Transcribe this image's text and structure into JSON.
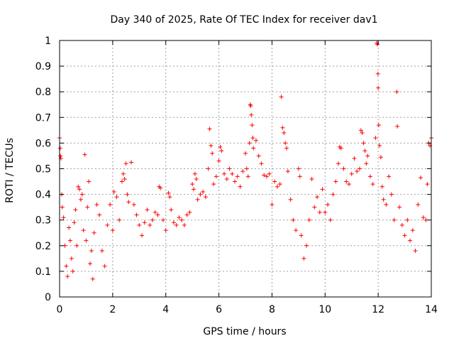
{
  "chart_data": {
    "type": "scatter",
    "title": "Day 340 of 2025, Rate Of TEC Index for receiver dav1",
    "xlabel": "GPS time / hours",
    "ylabel": "ROTI / TECUs",
    "xlim": [
      0,
      14
    ],
    "ylim": [
      0,
      1
    ],
    "x_ticks": [
      0,
      2,
      4,
      6,
      8,
      10,
      12,
      14
    ],
    "x_tick_labels": [
      "0",
      "2",
      "4",
      "6",
      "8",
      "10",
      "12",
      "14"
    ],
    "y_ticks": [
      0,
      0.1,
      0.2,
      0.3,
      0.4,
      0.5,
      0.6,
      0.7,
      0.8,
      0.9,
      1
    ],
    "y_tick_labels": [
      "0",
      "0.1",
      "0.2",
      "0.3",
      "0.4",
      "0.5",
      "0.6",
      "0.7",
      "0.8",
      "0.9",
      "1"
    ],
    "grid": true,
    "marker": "+",
    "color": "#ff0000",
    "points": [
      [
        0.0,
        0.62
      ],
      [
        0.02,
        0.58
      ],
      [
        0.03,
        0.55
      ],
      [
        0.05,
        0.54
      ],
      [
        0.08,
        0.4
      ],
      [
        0.1,
        0.35
      ],
      [
        0.15,
        0.31
      ],
      [
        0.2,
        0.2
      ],
      [
        0.25,
        0.12
      ],
      [
        0.3,
        0.08
      ],
      [
        0.35,
        0.27
      ],
      [
        0.4,
        0.22
      ],
      [
        0.45,
        0.15
      ],
      [
        0.5,
        0.1
      ],
      [
        0.55,
        0.29
      ],
      [
        0.6,
        0.34
      ],
      [
        0.65,
        0.2
      ],
      [
        0.7,
        0.43
      ],
      [
        0.75,
        0.42
      ],
      [
        0.8,
        0.38
      ],
      [
        0.85,
        0.4
      ],
      [
        0.9,
        0.26
      ],
      [
        0.95,
        0.555
      ],
      [
        1.0,
        0.22
      ],
      [
        1.05,
        0.35
      ],
      [
        1.1,
        0.45
      ],
      [
        1.15,
        0.13
      ],
      [
        1.2,
        0.18
      ],
      [
        1.25,
        0.07
      ],
      [
        1.3,
        0.25
      ],
      [
        1.4,
        0.36
      ],
      [
        1.5,
        0.32
      ],
      [
        1.6,
        0.18
      ],
      [
        1.7,
        0.12
      ],
      [
        1.8,
        0.28
      ],
      [
        1.9,
        0.36
      ],
      [
        2.0,
        0.26
      ],
      [
        2.05,
        0.41
      ],
      [
        2.15,
        0.39
      ],
      [
        2.25,
        0.3
      ],
      [
        2.35,
        0.45
      ],
      [
        2.4,
        0.48
      ],
      [
        2.45,
        0.46
      ],
      [
        2.5,
        0.52
      ],
      [
        2.55,
        0.4
      ],
      [
        2.6,
        0.37
      ],
      [
        2.7,
        0.525
      ],
      [
        2.8,
        0.36
      ],
      [
        2.9,
        0.32
      ],
      [
        3.0,
        0.28
      ],
      [
        3.1,
        0.24
      ],
      [
        3.2,
        0.29
      ],
      [
        3.3,
        0.34
      ],
      [
        3.4,
        0.28
      ],
      [
        3.5,
        0.3
      ],
      [
        3.6,
        0.33
      ],
      [
        3.7,
        0.32
      ],
      [
        3.75,
        0.43
      ],
      [
        3.8,
        0.425
      ],
      [
        3.9,
        0.3
      ],
      [
        4.0,
        0.26
      ],
      [
        4.1,
        0.405
      ],
      [
        4.15,
        0.39
      ],
      [
        4.2,
        0.34
      ],
      [
        4.3,
        0.29
      ],
      [
        4.4,
        0.28
      ],
      [
        4.5,
        0.31
      ],
      [
        4.6,
        0.3
      ],
      [
        4.7,
        0.28
      ],
      [
        4.8,
        0.32
      ],
      [
        4.9,
        0.33
      ],
      [
        5.0,
        0.44
      ],
      [
        5.05,
        0.42
      ],
      [
        5.1,
        0.48
      ],
      [
        5.15,
        0.46
      ],
      [
        5.2,
        0.38
      ],
      [
        5.3,
        0.4
      ],
      [
        5.4,
        0.41
      ],
      [
        5.5,
        0.39
      ],
      [
        5.6,
        0.5
      ],
      [
        5.65,
        0.655
      ],
      [
        5.7,
        0.59
      ],
      [
        5.75,
        0.56
      ],
      [
        5.8,
        0.44
      ],
      [
        5.9,
        0.47
      ],
      [
        6.0,
        0.53
      ],
      [
        6.05,
        0.585
      ],
      [
        6.1,
        0.57
      ],
      [
        6.2,
        0.48
      ],
      [
        6.3,
        0.46
      ],
      [
        6.4,
        0.5
      ],
      [
        6.5,
        0.48
      ],
      [
        6.6,
        0.45
      ],
      [
        6.7,
        0.47
      ],
      [
        6.8,
        0.43
      ],
      [
        6.9,
        0.49
      ],
      [
        7.0,
        0.56
      ],
      [
        7.05,
        0.5
      ],
      [
        7.1,
        0.47
      ],
      [
        7.15,
        0.6
      ],
      [
        7.18,
        0.75
      ],
      [
        7.2,
        0.745
      ],
      [
        7.22,
        0.71
      ],
      [
        7.25,
        0.67
      ],
      [
        7.28,
        0.62
      ],
      [
        7.3,
        0.58
      ],
      [
        7.4,
        0.61
      ],
      [
        7.5,
        0.55
      ],
      [
        7.6,
        0.52
      ],
      [
        7.7,
        0.475
      ],
      [
        7.8,
        0.47
      ],
      [
        7.9,
        0.48
      ],
      [
        8.0,
        0.36
      ],
      [
        8.1,
        0.45
      ],
      [
        8.2,
        0.43
      ],
      [
        8.3,
        0.44
      ],
      [
        8.35,
        0.78
      ],
      [
        8.4,
        0.66
      ],
      [
        8.45,
        0.64
      ],
      [
        8.5,
        0.6
      ],
      [
        8.55,
        0.58
      ],
      [
        8.6,
        0.49
      ],
      [
        8.7,
        0.38
      ],
      [
        8.8,
        0.3
      ],
      [
        8.9,
        0.26
      ],
      [
        9.0,
        0.5
      ],
      [
        9.05,
        0.47
      ],
      [
        9.1,
        0.24
      ],
      [
        9.2,
        0.15
      ],
      [
        9.3,
        0.2
      ],
      [
        9.4,
        0.3
      ],
      [
        9.5,
        0.46
      ],
      [
        9.6,
        0.35
      ],
      [
        9.7,
        0.39
      ],
      [
        9.8,
        0.33
      ],
      [
        9.9,
        0.42
      ],
      [
        10.0,
        0.33
      ],
      [
        10.1,
        0.36
      ],
      [
        10.2,
        0.3
      ],
      [
        10.3,
        0.4
      ],
      [
        10.4,
        0.45
      ],
      [
        10.5,
        0.52
      ],
      [
        10.55,
        0.585
      ],
      [
        10.6,
        0.58
      ],
      [
        10.7,
        0.5
      ],
      [
        10.8,
        0.45
      ],
      [
        10.9,
        0.44
      ],
      [
        11.0,
        0.48
      ],
      [
        11.1,
        0.54
      ],
      [
        11.2,
        0.49
      ],
      [
        11.3,
        0.5
      ],
      [
        11.35,
        0.65
      ],
      [
        11.4,
        0.64
      ],
      [
        11.45,
        0.6
      ],
      [
        11.5,
        0.57
      ],
      [
        11.55,
        0.52
      ],
      [
        11.6,
        0.55
      ],
      [
        11.7,
        0.47
      ],
      [
        11.8,
        0.44
      ],
      [
        11.9,
        0.62
      ],
      [
        11.95,
        0.99
      ],
      [
        11.97,
        0.985
      ],
      [
        11.99,
        0.87
      ],
      [
        12.0,
        0.815
      ],
      [
        12.02,
        0.67
      ],
      [
        12.05,
        0.59
      ],
      [
        12.1,
        0.545
      ],
      [
        12.15,
        0.43
      ],
      [
        12.2,
        0.38
      ],
      [
        12.3,
        0.36
      ],
      [
        12.4,
        0.47
      ],
      [
        12.5,
        0.4
      ],
      [
        12.6,
        0.3
      ],
      [
        12.7,
        0.8
      ],
      [
        12.72,
        0.665
      ],
      [
        12.8,
        0.35
      ],
      [
        12.9,
        0.28
      ],
      [
        13.0,
        0.24
      ],
      [
        13.1,
        0.3
      ],
      [
        13.2,
        0.22
      ],
      [
        13.3,
        0.26
      ],
      [
        13.4,
        0.18
      ],
      [
        13.5,
        0.36
      ],
      [
        13.6,
        0.465
      ],
      [
        13.7,
        0.31
      ],
      [
        13.8,
        0.3
      ],
      [
        13.85,
        0.44
      ],
      [
        13.9,
        0.6
      ],
      [
        13.95,
        0.59
      ],
      [
        14.0,
        0.62
      ]
    ]
  }
}
